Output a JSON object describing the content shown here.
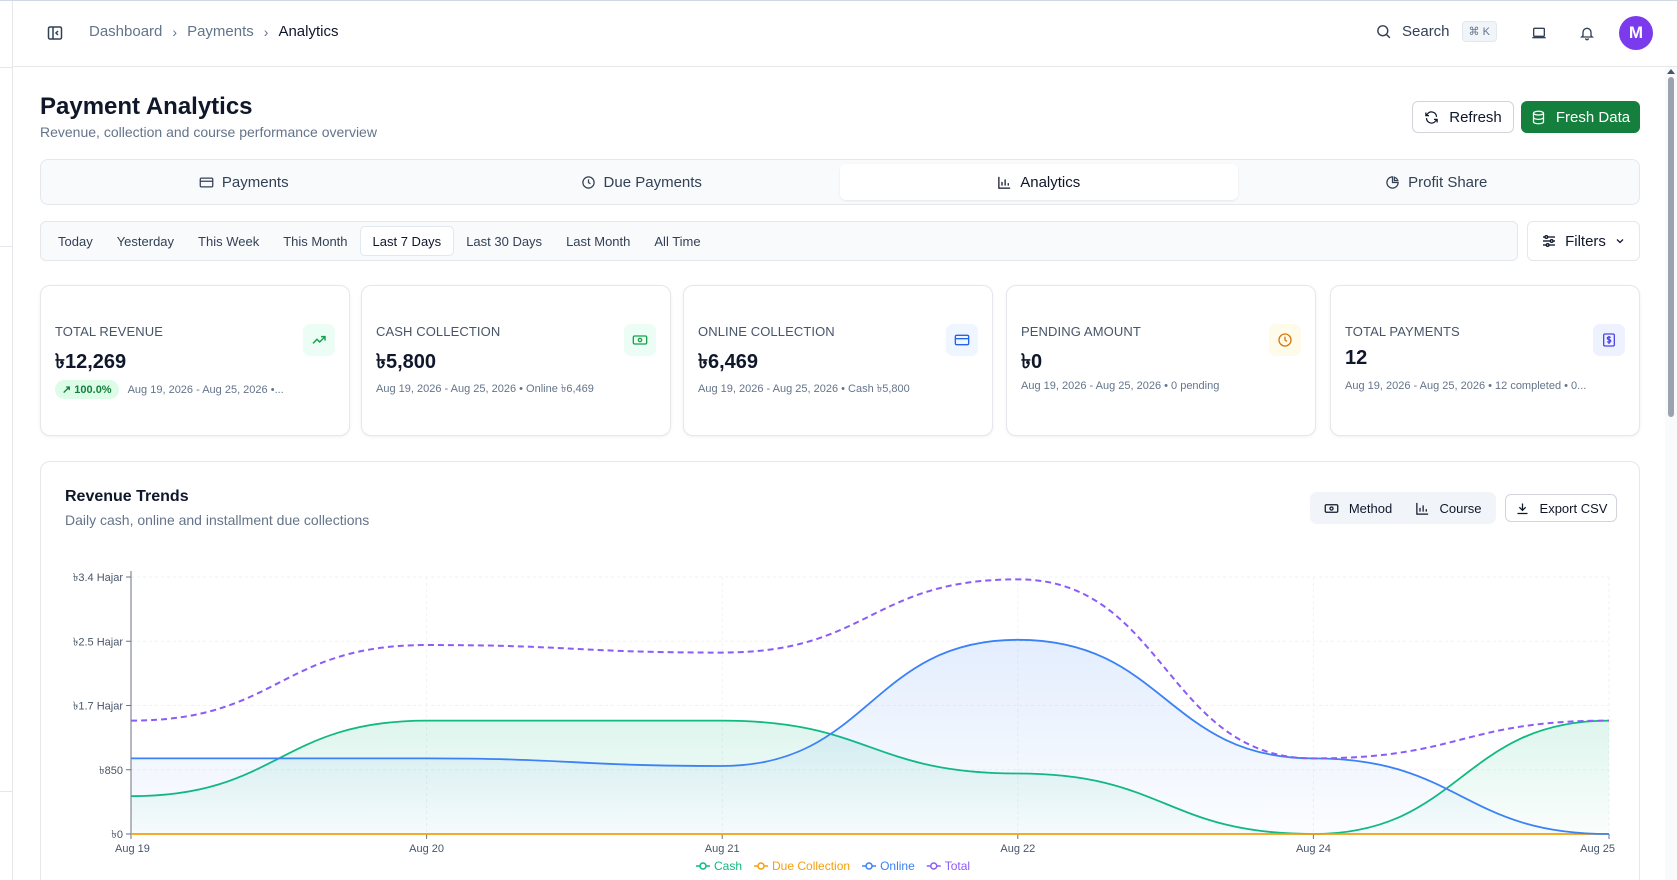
{
  "breadcrumb": [
    "Dashboard",
    "Payments",
    "Analytics"
  ],
  "search": {
    "label": "Search",
    "shortcut": "⌘ K"
  },
  "avatar": {
    "initial": "M",
    "color": "#7c3aed"
  },
  "header": {
    "title": "Payment Analytics",
    "subtitle": "Revenue, collection and course performance overview",
    "refresh_label": "Refresh",
    "fresh_label": "Fresh Data"
  },
  "tabs": [
    {
      "label": "Payments",
      "icon": "card-icon"
    },
    {
      "label": "Due Payments",
      "icon": "clock-icon"
    },
    {
      "label": "Analytics",
      "icon": "bar-chart-icon",
      "active": true
    },
    {
      "label": "Profit Share",
      "icon": "pie-icon"
    }
  ],
  "ranges": [
    "Today",
    "Yesterday",
    "This Week",
    "This Month",
    "Last 7 Days",
    "Last 30 Days",
    "Last Month",
    "All Time"
  ],
  "active_range": "Last 7 Days",
  "filters_label": "Filters",
  "cards": [
    {
      "label": "TOTAL REVENUE",
      "value": "৳12,269",
      "badge": "100.0%",
      "meta": "Aug 19, 2026 - Aug 25, 2026 •...",
      "icon": "trending-up-icon",
      "accent": "#16a34a",
      "bg": "#ecfdf5"
    },
    {
      "label": "CASH COLLECTION",
      "value": "৳5,800",
      "meta": "Aug 19, 2026 - Aug 25, 2026 • Online ৳6,469",
      "icon": "banknote-icon",
      "accent": "#16a34a",
      "bg": "#ecfdf5"
    },
    {
      "label": "ONLINE COLLECTION",
      "value": "৳6,469",
      "meta": "Aug 19, 2026 - Aug 25, 2026 • Cash ৳5,800",
      "icon": "credit-card-icon",
      "accent": "#2563eb",
      "bg": "#eff6ff"
    },
    {
      "label": "PENDING AMOUNT",
      "value": "৳0",
      "meta": "Aug 19, 2026 - Aug 25, 2026 • 0 pending",
      "icon": "clock-icon",
      "accent": "#d97706",
      "bg": "#fffbeb"
    },
    {
      "label": "TOTAL PAYMENTS",
      "value": "12",
      "meta": "Aug 19, 2026 - Aug 25, 2026 • 12 completed • 0...",
      "icon": "dollar-doc-icon",
      "accent": "#4f46e5",
      "bg": "#eef2ff"
    }
  ],
  "chart_section": {
    "title": "Revenue Trends",
    "subtitle": "Daily cash, online and installment due collections",
    "method_label": "Method",
    "course_label": "Course",
    "export_label": "Export CSV"
  },
  "chart_data": {
    "type": "area",
    "x": [
      "Aug 19",
      "Aug 20",
      "Aug 21",
      "Aug 22",
      "Aug 24",
      "Aug 25"
    ],
    "y_ticks": [
      "৳0",
      "৳850",
      "৳1.7 Hajar",
      "৳2.5 Hajar",
      "৳3.4 Hajar"
    ],
    "ylim": [
      0,
      3400
    ],
    "grid": true,
    "legend_position": "bottom",
    "series": [
      {
        "name": "Cash",
        "color": "#10b981",
        "style": "area",
        "values": [
          500,
          1500,
          1500,
          800,
          0,
          1500
        ]
      },
      {
        "name": "Due Collection",
        "color": "#f59e0b",
        "style": "line",
        "values": [
          0,
          0,
          0,
          0,
          0,
          0
        ]
      },
      {
        "name": "Online",
        "color": "#3b82f6",
        "style": "area",
        "values": [
          1000,
          1000,
          900,
          2569,
          1000,
          0
        ]
      },
      {
        "name": "Total",
        "color": "#8b5cf6",
        "style": "dashed",
        "values": [
          1500,
          2500,
          2400,
          3369,
          1000,
          1500
        ]
      }
    ]
  }
}
